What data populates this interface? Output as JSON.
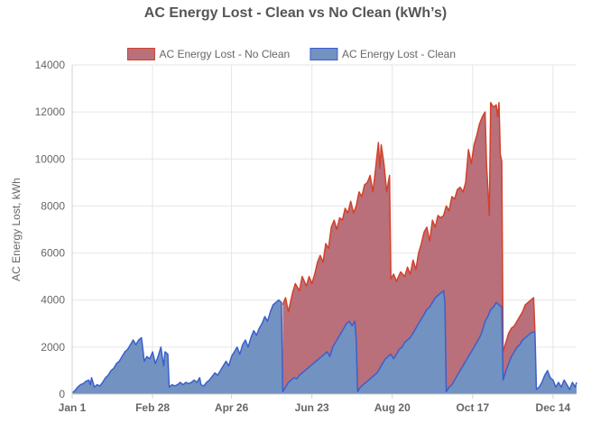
{
  "chart_data": {
    "type": "area",
    "title": "AC Energy Lost - Clean vs No Clean (kWh’s)",
    "xlabel": "",
    "ylabel": "AC Energy Lost, kWh",
    "ylim": [
      0,
      14000
    ],
    "y_ticks": [
      0,
      2000,
      4000,
      6000,
      8000,
      10000,
      12000,
      14000
    ],
    "x_ticks": [
      {
        "day": 1,
        "label": "Jan 1"
      },
      {
        "day": 59,
        "label": "Feb 28"
      },
      {
        "day": 116,
        "label": "Apr 26"
      },
      {
        "day": 174,
        "label": "Jun 23"
      },
      {
        "day": 232,
        "label": "Aug 20"
      },
      {
        "day": 290,
        "label": "Oct 17"
      },
      {
        "day": 348,
        "label": "Dec 14"
      }
    ],
    "grid": true,
    "legend_position": "top",
    "x_unit": "day of year",
    "series": [
      {
        "name": "AC Energy Lost - No Clean",
        "fill": "#b9707a",
        "stroke": "#d2412b",
        "points": [
          [
            153,
            3800
          ],
          [
            155,
            4100
          ],
          [
            157,
            3500
          ],
          [
            160,
            4300
          ],
          [
            162,
            4700
          ],
          [
            165,
            4400
          ],
          [
            167,
            5000
          ],
          [
            170,
            4600
          ],
          [
            172,
            5000
          ],
          [
            174,
            4700
          ],
          [
            176,
            5100
          ],
          [
            178,
            5600
          ],
          [
            180,
            5900
          ],
          [
            182,
            5600
          ],
          [
            184,
            6400
          ],
          [
            186,
            6200
          ],
          [
            188,
            7100
          ],
          [
            190,
            7400
          ],
          [
            192,
            7000
          ],
          [
            194,
            7500
          ],
          [
            196,
            7400
          ],
          [
            198,
            7900
          ],
          [
            200,
            7700
          ],
          [
            202,
            8200
          ],
          [
            204,
            7700
          ],
          [
            206,
            8000
          ],
          [
            208,
            8600
          ],
          [
            210,
            8400
          ],
          [
            212,
            8900
          ],
          [
            214,
            9000
          ],
          [
            216,
            9300
          ],
          [
            218,
            8600
          ],
          [
            220,
            9600
          ],
          [
            222,
            10700
          ],
          [
            223,
            9600
          ],
          [
            224,
            10600
          ],
          [
            226,
            9800
          ],
          [
            228,
            8600
          ],
          [
            230,
            9300
          ],
          [
            231,
            4900
          ],
          [
            233,
            5100
          ],
          [
            235,
            4800
          ],
          [
            238,
            5200
          ],
          [
            241,
            5000
          ],
          [
            243,
            5400
          ],
          [
            245,
            5100
          ],
          [
            247,
            5700
          ],
          [
            249,
            5300
          ],
          [
            251,
            6000
          ],
          [
            253,
            6400
          ],
          [
            255,
            6900
          ],
          [
            257,
            7100
          ],
          [
            259,
            6500
          ],
          [
            261,
            7400
          ],
          [
            263,
            7100
          ],
          [
            265,
            7600
          ],
          [
            267,
            7500
          ],
          [
            269,
            7600
          ],
          [
            271,
            8000
          ],
          [
            273,
            7800
          ],
          [
            275,
            8400
          ],
          [
            277,
            8300
          ],
          [
            279,
            8700
          ],
          [
            281,
            8800
          ],
          [
            283,
            8600
          ],
          [
            285,
            9000
          ],
          [
            287,
            10400
          ],
          [
            289,
            9800
          ],
          [
            291,
            10600
          ],
          [
            293,
            11000
          ],
          [
            295,
            11500
          ],
          [
            297,
            11800
          ],
          [
            299,
            12000
          ],
          [
            300,
            9800
          ],
          [
            302,
            7600
          ],
          [
            303,
            12400
          ],
          [
            305,
            12200
          ],
          [
            307,
            12300
          ],
          [
            308,
            11800
          ],
          [
            309,
            12400
          ],
          [
            310,
            10200
          ],
          [
            311,
            9900
          ],
          [
            312,
            1800
          ],
          [
            314,
            2200
          ],
          [
            316,
            2600
          ],
          [
            318,
            2800
          ],
          [
            320,
            2900
          ],
          [
            322,
            3100
          ],
          [
            324,
            3300
          ],
          [
            326,
            3500
          ],
          [
            328,
            3800
          ],
          [
            330,
            3900
          ],
          [
            332,
            4000
          ],
          [
            334,
            4100
          ],
          [
            335,
            2600
          ]
        ]
      },
      {
        "name": "AC Energy Lost - Clean",
        "fill": "#7292c1",
        "stroke": "#3c5fcc",
        "points": [
          [
            1,
            50
          ],
          [
            3,
            150
          ],
          [
            5,
            300
          ],
          [
            7,
            400
          ],
          [
            9,
            450
          ],
          [
            11,
            550
          ],
          [
            13,
            600
          ],
          [
            14,
            400
          ],
          [
            15,
            700
          ],
          [
            17,
            300
          ],
          [
            19,
            400
          ],
          [
            21,
            350
          ],
          [
            23,
            500
          ],
          [
            25,
            700
          ],
          [
            27,
            800
          ],
          [
            29,
            1000
          ],
          [
            31,
            1100
          ],
          [
            33,
            1300
          ],
          [
            35,
            1400
          ],
          [
            37,
            1600
          ],
          [
            39,
            1800
          ],
          [
            41,
            1900
          ],
          [
            43,
            2100
          ],
          [
            45,
            2300
          ],
          [
            47,
            2100
          ],
          [
            49,
            2300
          ],
          [
            51,
            2400
          ],
          [
            53,
            1400
          ],
          [
            55,
            1600
          ],
          [
            57,
            1500
          ],
          [
            59,
            1800
          ],
          [
            61,
            1300
          ],
          [
            63,
            1600
          ],
          [
            65,
            2000
          ],
          [
            67,
            1200
          ],
          [
            68,
            1800
          ],
          [
            70,
            1700
          ],
          [
            71,
            300
          ],
          [
            73,
            400
          ],
          [
            75,
            350
          ],
          [
            77,
            400
          ],
          [
            79,
            500
          ],
          [
            81,
            400
          ],
          [
            83,
            500
          ],
          [
            85,
            450
          ],
          [
            87,
            500
          ],
          [
            89,
            600
          ],
          [
            91,
            500
          ],
          [
            93,
            700
          ],
          [
            94,
            400
          ],
          [
            96,
            350
          ],
          [
            98,
            500
          ],
          [
            100,
            600
          ],
          [
            102,
            750
          ],
          [
            104,
            900
          ],
          [
            106,
            800
          ],
          [
            108,
            1000
          ],
          [
            110,
            1200
          ],
          [
            112,
            1400
          ],
          [
            114,
            1200
          ],
          [
            116,
            1600
          ],
          [
            118,
            1800
          ],
          [
            120,
            2000
          ],
          [
            122,
            1700
          ],
          [
            124,
            2100
          ],
          [
            126,
            2300
          ],
          [
            128,
            2000
          ],
          [
            130,
            2400
          ],
          [
            132,
            2700
          ],
          [
            134,
            2500
          ],
          [
            136,
            2800
          ],
          [
            138,
            3000
          ],
          [
            140,
            3300
          ],
          [
            142,
            3100
          ],
          [
            144,
            3500
          ],
          [
            146,
            3800
          ],
          [
            148,
            3900
          ],
          [
            150,
            4000
          ],
          [
            152,
            3900
          ],
          [
            153,
            100
          ],
          [
            155,
            300
          ],
          [
            157,
            500
          ],
          [
            159,
            600
          ],
          [
            161,
            700
          ],
          [
            163,
            650
          ],
          [
            165,
            800
          ],
          [
            167,
            900
          ],
          [
            169,
            1000
          ],
          [
            171,
            1100
          ],
          [
            173,
            1200
          ],
          [
            175,
            1300
          ],
          [
            177,
            1400
          ],
          [
            179,
            1500
          ],
          [
            181,
            1600
          ],
          [
            183,
            1700
          ],
          [
            185,
            1800
          ],
          [
            187,
            1600
          ],
          [
            189,
            2000
          ],
          [
            191,
            2200
          ],
          [
            193,
            2400
          ],
          [
            195,
            2600
          ],
          [
            197,
            2800
          ],
          [
            199,
            3000
          ],
          [
            201,
            3100
          ],
          [
            203,
            2900
          ],
          [
            205,
            3100
          ],
          [
            206,
            2300
          ],
          [
            207,
            100
          ],
          [
            209,
            300
          ],
          [
            211,
            400
          ],
          [
            213,
            500
          ],
          [
            215,
            600
          ],
          [
            217,
            700
          ],
          [
            219,
            800
          ],
          [
            221,
            900
          ],
          [
            223,
            1100
          ],
          [
            225,
            1300
          ],
          [
            227,
            1500
          ],
          [
            229,
            1600
          ],
          [
            231,
            1700
          ],
          [
            233,
            1500
          ],
          [
            235,
            1700
          ],
          [
            237,
            1900
          ],
          [
            239,
            2000
          ],
          [
            241,
            2200
          ],
          [
            243,
            2300
          ],
          [
            245,
            2400
          ],
          [
            247,
            2600
          ],
          [
            249,
            2800
          ],
          [
            251,
            3000
          ],
          [
            253,
            3200
          ],
          [
            255,
            3400
          ],
          [
            257,
            3600
          ],
          [
            259,
            3700
          ],
          [
            261,
            3900
          ],
          [
            263,
            4100
          ],
          [
            265,
            4200
          ],
          [
            267,
            4300
          ],
          [
            269,
            4400
          ],
          [
            270,
            3900
          ],
          [
            271,
            100
          ],
          [
            273,
            300
          ],
          [
            275,
            400
          ],
          [
            277,
            600
          ],
          [
            279,
            800
          ],
          [
            281,
            1000
          ],
          [
            283,
            1200
          ],
          [
            285,
            1400
          ],
          [
            287,
            1600
          ],
          [
            289,
            1800
          ],
          [
            291,
            2000
          ],
          [
            293,
            2200
          ],
          [
            295,
            2400
          ],
          [
            297,
            2700
          ],
          [
            299,
            3100
          ],
          [
            301,
            3300
          ],
          [
            303,
            3600
          ],
          [
            305,
            3700
          ],
          [
            307,
            3900
          ],
          [
            309,
            3800
          ],
          [
            311,
            3700
          ],
          [
            312,
            600
          ],
          [
            314,
            1000
          ],
          [
            316,
            1300
          ],
          [
            318,
            1600
          ],
          [
            320,
            1800
          ],
          [
            322,
            2000
          ],
          [
            324,
            2100
          ],
          [
            326,
            2300
          ],
          [
            328,
            2400
          ],
          [
            330,
            2500
          ],
          [
            332,
            2600
          ],
          [
            334,
            2650
          ],
          [
            335,
            2600
          ],
          [
            336,
            200
          ],
          [
            338,
            300
          ],
          [
            340,
            500
          ],
          [
            342,
            800
          ],
          [
            344,
            1000
          ],
          [
            346,
            700
          ],
          [
            348,
            600
          ],
          [
            350,
            300
          ],
          [
            352,
            500
          ],
          [
            354,
            300
          ],
          [
            356,
            600
          ],
          [
            358,
            400
          ],
          [
            360,
            200
          ],
          [
            362,
            500
          ],
          [
            364,
            300
          ],
          [
            365,
            500
          ]
        ]
      }
    ]
  }
}
